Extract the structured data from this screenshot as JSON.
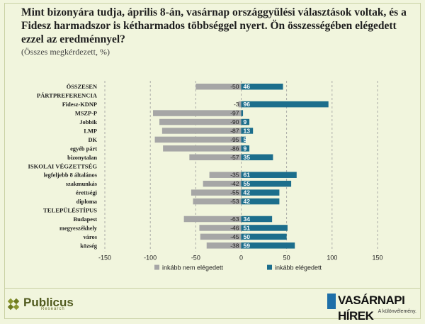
{
  "header": {
    "title": "Mint bizonyára tudja, április 8-án, vasárnap országgyűlési választások voltak, és a Fidesz harmadszor is kétharmados többséggel nyert. Ön összességében elégedett ezzel az eredménnyel?",
    "subtitle": "(Összes megkérdezett, %)"
  },
  "colors": {
    "negative": "#a6a6a6",
    "positive": "#1c6e8c",
    "background": "#f1f5dd",
    "gridline": "#9a9a9a"
  },
  "chart_data": {
    "type": "bar",
    "orientation": "horizontal",
    "stacked": "diverging",
    "xlim": [
      -150,
      150
    ],
    "xticks": [
      "-150",
      "-100",
      "-50",
      "0",
      "50",
      "100",
      "150"
    ],
    "grid": true,
    "legend_position": "bottom",
    "series": [
      {
        "name": "inkább nem elégedett",
        "color": "#a6a6a6"
      },
      {
        "name": "inkább elégedett",
        "color": "#1c6e8c"
      }
    ],
    "rows": [
      {
        "label": "ÖSSZESEN",
        "header": false,
        "neg": -50,
        "pos": 46
      },
      {
        "label": "PÁRTPREFERENCIA",
        "header": true
      },
      {
        "label": "Fidesz-KDNP",
        "header": false,
        "neg": -3,
        "pos": 96
      },
      {
        "label": "MSZP-P",
        "header": false,
        "neg": -97,
        "pos": 2
      },
      {
        "label": "Jobbik",
        "header": false,
        "neg": -90,
        "pos": 9
      },
      {
        "label": "LMP",
        "header": false,
        "neg": -87,
        "pos": 13
      },
      {
        "label": "DK",
        "header": false,
        "neg": -95,
        "pos": 5
      },
      {
        "label": "egyéb párt",
        "header": false,
        "neg": -86,
        "pos": 9
      },
      {
        "label": "bizonytalan",
        "header": false,
        "neg": -57,
        "pos": 35
      },
      {
        "label": "ISKOLAI VÉGZETTSÉG",
        "header": true
      },
      {
        "label": "legfeljebb 8 általános",
        "header": false,
        "neg": -35,
        "pos": 61
      },
      {
        "label": "szakmunkás",
        "header": false,
        "neg": -42,
        "pos": 55
      },
      {
        "label": "érettségi",
        "header": false,
        "neg": -55,
        "pos": 42
      },
      {
        "label": "diploma",
        "header": false,
        "neg": -53,
        "pos": 42
      },
      {
        "label": "TELEPÜLÉSTÍPUS",
        "header": true
      },
      {
        "label": "Budapest",
        "header": false,
        "neg": -63,
        "pos": 34
      },
      {
        "label": "megyeszékhely",
        "header": false,
        "neg": -46,
        "pos": 51
      },
      {
        "label": "város",
        "header": false,
        "neg": -45,
        "pos": 50
      },
      {
        "label": "község",
        "header": false,
        "neg": -38,
        "pos": 59
      }
    ]
  },
  "logos": {
    "left": {
      "name": "Publicus",
      "sub": "Research"
    },
    "right": {
      "name": "VASÁRNAPI HÍREK",
      "tagline": "A különvélemény."
    }
  }
}
